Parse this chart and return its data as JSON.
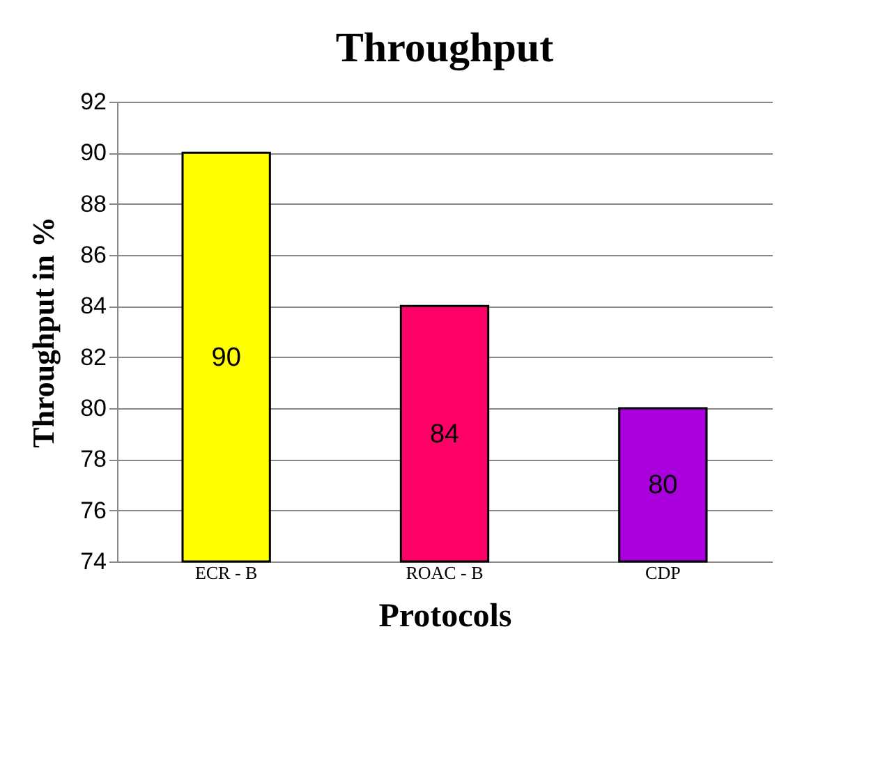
{
  "chart_data": {
    "type": "bar",
    "title": "Throughput",
    "xlabel": "Protocols",
    "ylabel": "Throughput in %",
    "categories": [
      "ECR - B",
      "ROAC - B",
      "CDP"
    ],
    "values": [
      90,
      84,
      80
    ],
    "colors": [
      "#ffff00",
      "#ff0066",
      "#aa00dd"
    ],
    "ylim": [
      74,
      92
    ],
    "yticks": [
      74,
      76,
      78,
      80,
      82,
      84,
      86,
      88,
      90,
      92
    ],
    "grid": "y",
    "data_labels": true
  }
}
